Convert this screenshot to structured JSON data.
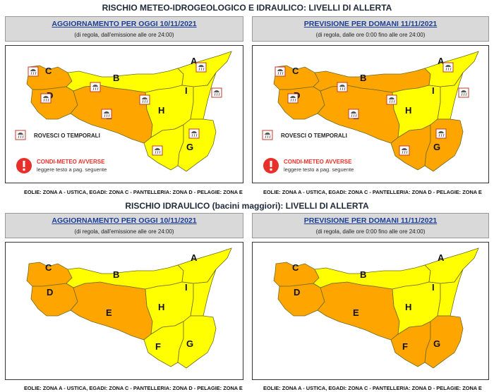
{
  "colors": {
    "yellow": "#ffff00",
    "orange": "#ffa500",
    "border": "#6e6a1e",
    "alert_red": "#e8302a"
  },
  "meteo_section": {
    "title": "RISCHIO METEO-IDROGEOLOGICO E IDRAULICO: LIVELLI DI ALLERTA"
  },
  "hydro_section": {
    "title": "RISCHIO IDRAULICO (bacini maggiori): LIVELLI DI ALLERTA"
  },
  "panels": [
    {
      "title": "AGGIORNAMENTO PER OGGI 10/11/2021",
      "subtitle": "(di regola, dall'emissione alle ore 24:00)",
      "levels": {
        "A": "yellow",
        "B": "yellow",
        "C": "orange",
        "D": "orange",
        "E": "orange",
        "F": "yellow",
        "G": "yellow",
        "H": "yellow",
        "I": "yellow"
      },
      "legend_storm": "ROVESCI O TEMPORALI",
      "legend_adverse": "CONDI-METEO AVVERSE",
      "legend_note": "leggere testo a pag. seguente",
      "footnote": "EOLIE: ZONA A - USTICA, EGADI: ZONA C - PANTELLERIA: ZONA D - PELAGIE: ZONA E"
    },
    {
      "title": "PREVISIONE PER DOMANI 11/11/2021",
      "subtitle": "(di regola, dalle ore 0:00 fino alle ore 24:00)",
      "levels": {
        "A": "yellow",
        "B": "orange",
        "C": "orange",
        "D": "orange",
        "E": "orange",
        "F": "orange",
        "G": "orange",
        "H": "yellow",
        "I": "yellow"
      },
      "legend_storm": "ROVESCI O TEMPORALI",
      "legend_adverse": "CONDI-METEO AVVERSE",
      "legend_note": "leggere testo a pag. seguente",
      "footnote": "EOLIE: ZONA A - USTICA, EGADI: ZONA C - PANTELLERIA: ZONA D - PELAGIE: ZONA E"
    },
    {
      "title": "AGGIORNAMENTO PER OGGI 10/11/2021",
      "subtitle": "(di regola, dall'emissione alle ore 24:00)",
      "levels": {
        "A": "yellow",
        "B": "yellow",
        "C": "orange",
        "D": "orange",
        "E": "orange",
        "F": "yellow",
        "G": "yellow",
        "H": "yellow",
        "I": "yellow"
      },
      "footnote": "EOLIE: ZONA A - USTICA, EGADI: ZONA C - PANTELLERIA: ZONA D - PELAGIE: ZONA E"
    },
    {
      "title": "PREVISIONE PER DOMANI 11/11/2021",
      "subtitle": "(di regola, dalle ore 0:00 fino alle ore 24:00)",
      "levels": {
        "A": "yellow",
        "B": "yellow",
        "C": "orange",
        "D": "orange",
        "E": "orange",
        "F": "orange",
        "G": "orange",
        "H": "yellow",
        "I": "yellow"
      },
      "footnote": "EOLIE: ZONA A - USTICA, EGADI: ZONA C - PANTELLERIA: ZONA D - PELAGIE: ZONA E"
    }
  ]
}
